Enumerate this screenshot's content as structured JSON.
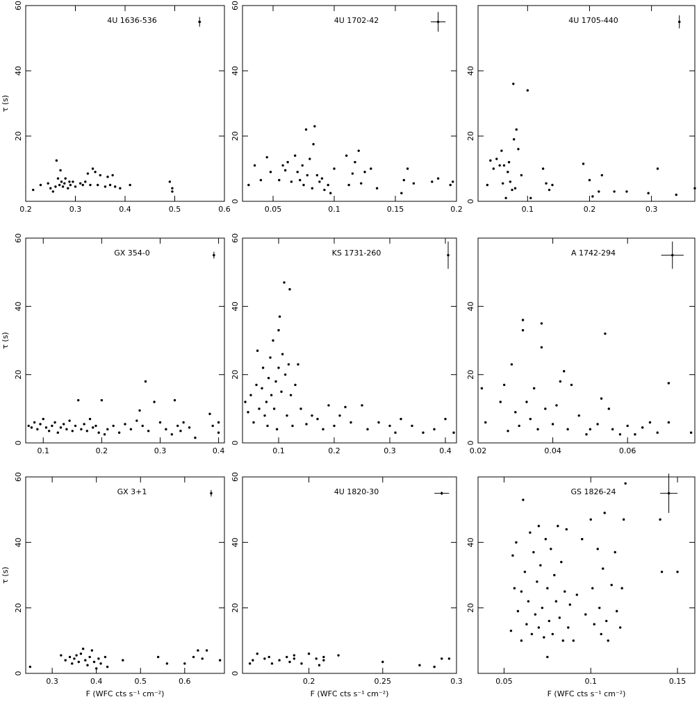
{
  "chart_data": [
    {
      "type": "scatter",
      "title": "4U 1636-536",
      "y_label": "τ (s)",
      "xlim": [
        0.2,
        0.6
      ],
      "ylim": [
        0,
        60
      ],
      "xticks": [
        0.2,
        0.3,
        0.4,
        0.5,
        0.6
      ],
      "yticks": [
        20,
        40,
        60
      ],
      "x": [
        0.215,
        0.23,
        0.245,
        0.25,
        0.255,
        0.26,
        0.262,
        0.265,
        0.268,
        0.27,
        0.272,
        0.275,
        0.278,
        0.28,
        0.285,
        0.288,
        0.29,
        0.295,
        0.3,
        0.31,
        0.315,
        0.32,
        0.325,
        0.33,
        0.335,
        0.34,
        0.345,
        0.35,
        0.36,
        0.365,
        0.37,
        0.375,
        0.38,
        0.39,
        0.41,
        0.49,
        0.495,
        0.495
      ],
      "y": [
        3.5,
        5,
        5.5,
        4,
        3,
        4.5,
        12.5,
        7,
        5,
        9.5,
        6,
        4.5,
        5.5,
        7,
        4,
        6,
        5,
        6,
        4.5,
        5.5,
        5,
        6,
        8.5,
        5,
        10,
        9,
        5,
        8,
        4.5,
        7.5,
        5,
        8,
        4.5,
        4,
        5,
        6,
        4,
        3
      ],
      "errorbar": {
        "x": 0.55,
        "y": 55,
        "xerr": 0.003,
        "yerr": 1.5
      }
    },
    {
      "type": "scatter",
      "title": "4U 1702-42",
      "xlim": [
        0.025,
        0.2
      ],
      "ylim": [
        0,
        60
      ],
      "xticks": [
        0.05,
        0.1,
        0.15,
        0.2
      ],
      "yticks": [
        0,
        20,
        40,
        60
      ],
      "x": [
        0.03,
        0.035,
        0.04,
        0.045,
        0.048,
        0.055,
        0.058,
        0.06,
        0.062,
        0.065,
        0.068,
        0.07,
        0.072,
        0.074,
        0.075,
        0.077,
        0.078,
        0.08,
        0.082,
        0.083,
        0.084,
        0.086,
        0.088,
        0.09,
        0.092,
        0.095,
        0.097,
        0.1,
        0.11,
        0.112,
        0.115,
        0.117,
        0.12,
        0.122,
        0.125,
        0.13,
        0.135,
        0.155,
        0.157,
        0.16,
        0.165,
        0.18,
        0.185,
        0.195,
        0.197
      ],
      "y": [
        5,
        11,
        6.5,
        13.5,
        9,
        6.5,
        11,
        9.5,
        12,
        6,
        14,
        9,
        6.5,
        11,
        5,
        22,
        8,
        13,
        4,
        17.5,
        23,
        8,
        6,
        7,
        3.5,
        5,
        2.5,
        10,
        14,
        5,
        8.5,
        12,
        15.5,
        5.5,
        9,
        10,
        4,
        2.5,
        6.5,
        10,
        5.5,
        6,
        7,
        5,
        6
      ],
      "errorbar": {
        "x": 0.185,
        "y": 55,
        "xerr": 0.006,
        "yerr": 3
      }
    },
    {
      "type": "scatter",
      "title": "4U 1705-440",
      "xlim": [
        0.02,
        0.37
      ],
      "ylim": [
        0,
        60
      ],
      "xticks": [
        0.1,
        0.2,
        0.3
      ],
      "yticks": [
        0,
        20,
        40
      ],
      "x": [
        0.035,
        0.04,
        0.045,
        0.05,
        0.055,
        0.058,
        0.06,
        0.062,
        0.065,
        0.068,
        0.07,
        0.072,
        0.075,
        0.077,
        0.078,
        0.08,
        0.082,
        0.085,
        0.09,
        0.1,
        0.105,
        0.125,
        0.13,
        0.135,
        0.14,
        0.19,
        0.2,
        0.205,
        0.215,
        0.22,
        0.24,
        0.26,
        0.295,
        0.31,
        0.34,
        0.37
      ],
      "y": [
        5,
        12.5,
        10,
        13,
        11,
        15.5,
        5.5,
        11,
        1,
        9,
        12,
        6,
        3.5,
        36,
        19,
        4,
        22,
        16,
        8,
        34,
        1,
        10,
        5.5,
        3.5,
        5,
        11.5,
        6.5,
        1.5,
        3,
        8,
        3,
        3,
        2.5,
        10,
        2,
        4
      ],
      "errorbar": {
        "x": 0.345,
        "y": 55,
        "xerr": 0.002,
        "yerr": 2
      }
    },
    {
      "type": "scatter",
      "title": "GX 354-0",
      "y_label": "τ (s)",
      "xlim": [
        0.07,
        0.41
      ],
      "ylim": [
        0,
        60
      ],
      "xticks": [
        0.1,
        0.2,
        0.3,
        0.4
      ],
      "yticks": [
        0,
        20,
        40,
        60
      ],
      "x": [
        0.075,
        0.08,
        0.085,
        0.09,
        0.095,
        0.1,
        0.105,
        0.11,
        0.115,
        0.12,
        0.125,
        0.13,
        0.135,
        0.14,
        0.145,
        0.15,
        0.155,
        0.16,
        0.165,
        0.17,
        0.175,
        0.18,
        0.185,
        0.19,
        0.195,
        0.2,
        0.205,
        0.21,
        0.22,
        0.23,
        0.24,
        0.25,
        0.26,
        0.265,
        0.27,
        0.275,
        0.28,
        0.29,
        0.3,
        0.31,
        0.32,
        0.325,
        0.33,
        0.335,
        0.34,
        0.35,
        0.36,
        0.385,
        0.39,
        0.4,
        0.4
      ],
      "y": [
        5,
        4.5,
        6,
        4,
        5.5,
        7,
        4.5,
        3.5,
        5,
        6,
        3,
        4.5,
        5.5,
        4,
        6.5,
        3.5,
        5,
        12.5,
        4,
        5.5,
        3.5,
        7,
        4.5,
        5,
        3,
        12.5,
        2.5,
        4,
        5,
        3,
        5.5,
        4,
        6.5,
        9.5,
        5,
        18,
        3.5,
        12,
        6,
        4,
        2.5,
        12.5,
        5,
        3.5,
        6,
        4.5,
        1.5,
        8.5,
        5,
        3,
        6
      ],
      "errorbar": {
        "x": 0.392,
        "y": 55,
        "xerr": 0.002,
        "yerr": 1
      }
    },
    {
      "type": "scatter",
      "title": "KS 1731-260",
      "xlim": [
        0.035,
        0.42
      ],
      "ylim": [
        0,
        60
      ],
      "xticks": [
        0.1,
        0.2,
        0.3,
        0.4
      ],
      "yticks": [
        0,
        20,
        40,
        60
      ],
      "x": [
        0.04,
        0.045,
        0.05,
        0.055,
        0.06,
        0.062,
        0.065,
        0.07,
        0.072,
        0.075,
        0.078,
        0.08,
        0.082,
        0.085,
        0.087,
        0.09,
        0.092,
        0.095,
        0.097,
        0.1,
        0.1,
        0.102,
        0.105,
        0.107,
        0.11,
        0.112,
        0.115,
        0.118,
        0.12,
        0.122,
        0.125,
        0.13,
        0.135,
        0.14,
        0.15,
        0.16,
        0.17,
        0.18,
        0.19,
        0.2,
        0.21,
        0.22,
        0.23,
        0.25,
        0.26,
        0.28,
        0.3,
        0.31,
        0.32,
        0.34,
        0.36,
        0.38,
        0.4,
        0.415
      ],
      "y": [
        12,
        9,
        14,
        6,
        17,
        27,
        10,
        16,
        22,
        8,
        12,
        5,
        19,
        25,
        14,
        30,
        10,
        18,
        4,
        33,
        22,
        37,
        15,
        26,
        47,
        20,
        8,
        23,
        45,
        14,
        5,
        17,
        23,
        10,
        5.5,
        8,
        7,
        4,
        11,
        5,
        8,
        10.5,
        6,
        11,
        4,
        6,
        5,
        3,
        7,
        5,
        3,
        4,
        7,
        3
      ],
      "errorbar": {
        "x": 0.405,
        "y": 55,
        "xerr": 0.001,
        "yerr": 4
      }
    },
    {
      "type": "scatter",
      "title": "A 1742-294",
      "xlim": [
        0.02,
        0.078
      ],
      "ylim": [
        0,
        60
      ],
      "xticks": [
        0.02,
        0.04,
        0.06
      ],
      "yticks": [
        0,
        20,
        40
      ],
      "x": [
        0.021,
        0.022,
        0.026,
        0.027,
        0.028,
        0.029,
        0.03,
        0.031,
        0.032,
        0.032,
        0.033,
        0.034,
        0.035,
        0.036,
        0.037,
        0.037,
        0.038,
        0.04,
        0.041,
        0.042,
        0.043,
        0.044,
        0.045,
        0.047,
        0.049,
        0.05,
        0.052,
        0.053,
        0.054,
        0.055,
        0.056,
        0.058,
        0.06,
        0.062,
        0.064,
        0.066,
        0.068,
        0.071,
        0.071,
        0.077
      ],
      "y": [
        16,
        6,
        12,
        17,
        3.5,
        23,
        9,
        5,
        36,
        33,
        12,
        7,
        16,
        4,
        35,
        28,
        10,
        5.5,
        11,
        18,
        21,
        4,
        17,
        8,
        2.5,
        4,
        5.5,
        13,
        32,
        10,
        4,
        2.5,
        5,
        2.5,
        4.5,
        6,
        3,
        17.5,
        6,
        3
      ],
      "errorbar": {
        "x": 0.072,
        "y": 55,
        "xerr": 0.003,
        "yerr": 4
      }
    },
    {
      "type": "scatter",
      "title": "GX 3+1",
      "y_label": "τ (s)",
      "x_label": "F (WFC cts s⁻¹ cm⁻²)",
      "xlim": [
        0.24,
        0.69
      ],
      "ylim": [
        0,
        60
      ],
      "xticks": [
        0.3,
        0.4,
        0.5,
        0.6
      ],
      "yticks": [
        0,
        20,
        40,
        60
      ],
      "x": [
        0.25,
        0.32,
        0.33,
        0.34,
        0.345,
        0.35,
        0.355,
        0.36,
        0.365,
        0.37,
        0.375,
        0.38,
        0.385,
        0.39,
        0.395,
        0.4,
        0.405,
        0.41,
        0.42,
        0.425,
        0.46,
        0.54,
        0.56,
        0.6,
        0.62,
        0.63,
        0.64,
        0.65,
        0.68
      ],
      "y": [
        2,
        5.5,
        4,
        5,
        3,
        4.5,
        5.5,
        3.5,
        6,
        7.5,
        4,
        2.5,
        5,
        7,
        3.5,
        1.5,
        4.5,
        3,
        5,
        2,
        4,
        5,
        3,
        3,
        5,
        7,
        4.5,
        7,
        4
      ],
      "errorbar": {
        "x": 0.66,
        "y": 55,
        "xerr": 0.002,
        "yerr": 1
      }
    },
    {
      "type": "scatter",
      "title": "4U 1820-30",
      "x_label": "F (WFC cts s⁻¹ cm⁻²)",
      "xlim": [
        0.155,
        0.3
      ],
      "ylim": [
        0,
        60
      ],
      "xticks": [
        0.2,
        0.25,
        0.3
      ],
      "yticks": [
        0,
        20,
        40,
        60
      ],
      "x": [
        0.16,
        0.162,
        0.165,
        0.17,
        0.173,
        0.175,
        0.18,
        0.185,
        0.187,
        0.19,
        0.19,
        0.195,
        0.2,
        0.205,
        0.207,
        0.21,
        0.21,
        0.22,
        0.25,
        0.275,
        0.285,
        0.29,
        0.295
      ],
      "y": [
        3,
        4,
        6,
        4.5,
        5,
        3,
        4,
        5,
        3.5,
        4.5,
        5.5,
        3,
        6,
        4.5,
        2.5,
        5,
        4,
        5.5,
        3.5,
        2.5,
        2,
        4.5,
        4.5
      ],
      "errorbar": {
        "x": 0.29,
        "y": 55,
        "xerr": 0.005,
        "yerr": 0.5
      }
    },
    {
      "type": "scatter",
      "title": "GS 1826-24",
      "x_label": "F (WFC cts s⁻¹ cm⁻²)",
      "xlim": [
        0.035,
        0.16
      ],
      "ylim": [
        0,
        60
      ],
      "xticks": [
        0.05,
        0.1,
        0.15
      ],
      "yticks": [
        20,
        40
      ],
      "x": [
        0.054,
        0.055,
        0.056,
        0.057,
        0.058,
        0.06,
        0.06,
        0.061,
        0.062,
        0.063,
        0.064,
        0.065,
        0.066,
        0.067,
        0.068,
        0.069,
        0.07,
        0.07,
        0.071,
        0.072,
        0.073,
        0.074,
        0.075,
        0.075,
        0.076,
        0.077,
        0.078,
        0.079,
        0.08,
        0.081,
        0.082,
        0.083,
        0.084,
        0.085,
        0.086,
        0.087,
        0.088,
        0.09,
        0.092,
        0.095,
        0.097,
        0.1,
        0.101,
        0.102,
        0.104,
        0.105,
        0.106,
        0.107,
        0.108,
        0.109,
        0.11,
        0.112,
        0.114,
        0.115,
        0.117,
        0.118,
        0.119,
        0.12,
        0.14,
        0.141,
        0.15
      ],
      "y": [
        13,
        36,
        26,
        40,
        19,
        10,
        25,
        53,
        31,
        15,
        22,
        43,
        12,
        37,
        18,
        28,
        45,
        14,
        33,
        20,
        11,
        41,
        26,
        5,
        16,
        38,
        12,
        30,
        22,
        45,
        17,
        34,
        10,
        25,
        44,
        14,
        21,
        10,
        24,
        41,
        18,
        47,
        26,
        15,
        38,
        20,
        12,
        32,
        49,
        16,
        10,
        27,
        37,
        19,
        14,
        26,
        47,
        58,
        47,
        31,
        31
      ],
      "errorbar": {
        "x": 0.145,
        "y": 55,
        "xerr": 0.005,
        "yerr": 6
      }
    }
  ]
}
